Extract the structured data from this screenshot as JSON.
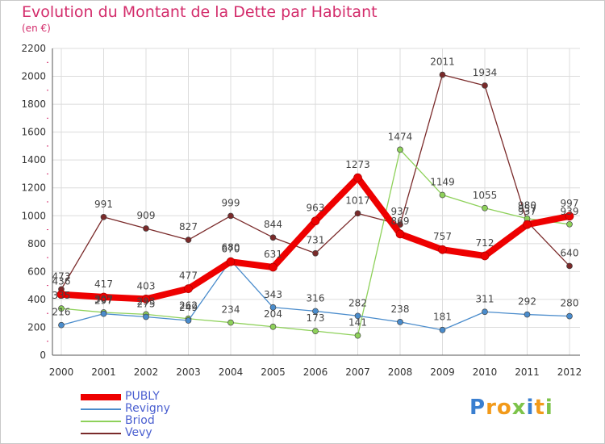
{
  "title": "Evolution du Montant de la Dette par Habitant",
  "subtitle": "(en €)",
  "logo": {
    "text": "Proxiti",
    "letters": [
      "P",
      "r",
      "o",
      "x",
      "i",
      "t",
      "i"
    ],
    "colors": [
      "#3a7fd0",
      "#f29a1a",
      "#f29a1a",
      "#7dc34a",
      "#3a7fd0",
      "#f29a1a",
      "#7dc34a"
    ]
  },
  "chart_data": {
    "type": "line",
    "x": [
      "2000",
      "2001",
      "2002",
      "2003",
      "2004",
      "2005",
      "2006",
      "2007",
      "2008",
      "2009",
      "2010",
      "2011",
      "2012"
    ],
    "ylim": [
      0,
      2200
    ],
    "yticks": [
      "0",
      "200",
      "400",
      "600",
      "800",
      "1000",
      "1200",
      "1400",
      "1600",
      "1800",
      "2000",
      "2200"
    ],
    "grid": true,
    "legend_position": "bottom-left",
    "series": [
      {
        "name": "PUBLY",
        "color": "#ee0000",
        "values": [
          436,
          417,
          403,
          477,
          670,
          631,
          963,
          1273,
          869,
          757,
          712,
          937,
          997
        ],
        "labels": [
          "436",
          "417",
          "403",
          "477",
          "670",
          "631",
          "963",
          "1273",
          "869",
          "757",
          "712",
          "937",
          "997"
        ]
      },
      {
        "name": "Revigny",
        "color": "#4a8ccc",
        "values": [
          216,
          297,
          275,
          249,
          680,
          343,
          316,
          282,
          238,
          181,
          311,
          292,
          280
        ],
        "labels": [
          "216",
          "297",
          "275",
          "249",
          "680",
          "343",
          "316",
          "282",
          "238",
          "181",
          "311",
          "292",
          "280"
        ]
      },
      {
        "name": "Briod",
        "color": "#8ed15a",
        "values": [
          335,
          307,
          293,
          262,
          234,
          204,
          173,
          141,
          1474,
          1149,
          1055,
          980,
          939
        ],
        "labels": [
          "335",
          "307",
          "293",
          "262",
          "234",
          "204",
          "173",
          "141",
          "1474",
          "1149",
          "1055",
          "980",
          "939"
        ]
      },
      {
        "name": "Vevy",
        "color": "#7a2a2a",
        "values": [
          473,
          991,
          909,
          827,
          999,
          844,
          731,
          1017,
          937,
          2011,
          1934,
          957,
          640
        ],
        "labels": [
          "473",
          "991",
          "909",
          "827",
          "999",
          "844",
          "731",
          "1017",
          "937",
          "2011",
          "1934",
          "957",
          "640"
        ]
      }
    ]
  }
}
